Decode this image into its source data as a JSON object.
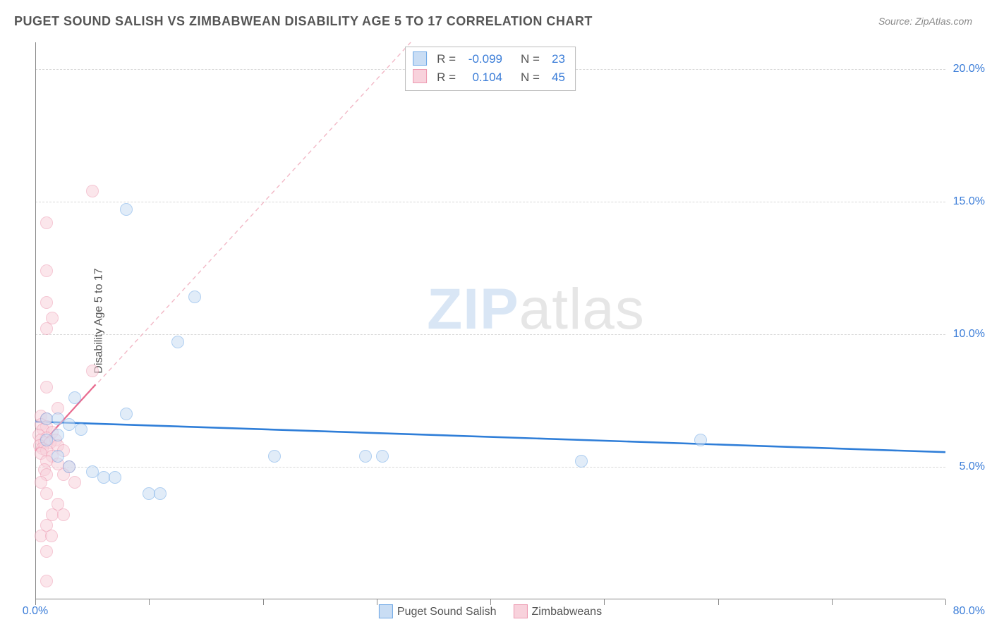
{
  "title": "PUGET SOUND SALISH VS ZIMBABWEAN DISABILITY AGE 5 TO 17 CORRELATION CHART",
  "source": "Source: ZipAtlas.com",
  "ylabel": "Disability Age 5 to 17",
  "watermark_bold": "ZIP",
  "watermark_light": "atlas",
  "chart": {
    "type": "scatter",
    "background_color": "#ffffff",
    "grid_color": "#d8d8d8",
    "axis_color": "#888888",
    "text_color": "#555555",
    "value_color": "#3b7dd8",
    "xlim": [
      0,
      80
    ],
    "ylim": [
      0,
      21
    ],
    "x_ticks": [
      0,
      10,
      20,
      30,
      40,
      50,
      60,
      70,
      80
    ],
    "x_tick_labels": {
      "0": "0.0%",
      "80": "80.0%"
    },
    "y_gridlines": [
      5,
      10,
      15,
      20
    ],
    "y_tick_labels": [
      "5.0%",
      "10.0%",
      "15.0%",
      "20.0%"
    ],
    "marker_radius": 9,
    "marker_border_width": 1.5,
    "series": [
      {
        "name": "Puget Sound Salish",
        "fill": "#c9ddf4",
        "stroke": "#6fa8e6",
        "fill_opacity": 0.55,
        "points": [
          [
            8.0,
            14.7
          ],
          [
            14.0,
            11.4
          ],
          [
            12.5,
            9.7
          ],
          [
            3.5,
            7.6
          ],
          [
            8.0,
            7.0
          ],
          [
            1.0,
            6.8
          ],
          [
            2.0,
            6.8
          ],
          [
            3.0,
            6.6
          ],
          [
            4.0,
            6.4
          ],
          [
            2.0,
            6.2
          ],
          [
            1.0,
            6.0
          ],
          [
            58.5,
            6.0
          ],
          [
            48.0,
            5.2
          ],
          [
            29.0,
            5.4
          ],
          [
            30.5,
            5.4
          ],
          [
            5.0,
            4.8
          ],
          [
            6.0,
            4.6
          ],
          [
            7.0,
            4.6
          ],
          [
            10.0,
            4.0
          ],
          [
            11.0,
            4.0
          ],
          [
            2.0,
            5.4
          ],
          [
            21.0,
            5.4
          ],
          [
            3.0,
            5.0
          ]
        ],
        "trend": {
          "y_at_x0": 6.7,
          "y_at_xmax": 5.55,
          "stroke": "#2f7ed8",
          "width": 2.6,
          "dash": "none"
        }
      },
      {
        "name": "Zimbabweans",
        "fill": "#f8d2dc",
        "stroke": "#ed9ab1",
        "fill_opacity": 0.55,
        "points": [
          [
            5.0,
            15.4
          ],
          [
            1.0,
            14.2
          ],
          [
            1.0,
            12.4
          ],
          [
            1.0,
            11.2
          ],
          [
            1.5,
            10.6
          ],
          [
            1.0,
            10.2
          ],
          [
            5.0,
            8.6
          ],
          [
            1.0,
            8.0
          ],
          [
            2.0,
            7.2
          ],
          [
            0.5,
            6.9
          ],
          [
            1.0,
            6.8
          ],
          [
            0.5,
            6.6
          ],
          [
            1.0,
            6.5
          ],
          [
            0.7,
            6.4
          ],
          [
            1.5,
            6.3
          ],
          [
            0.3,
            6.2
          ],
          [
            1.0,
            6.1
          ],
          [
            0.5,
            6.0
          ],
          [
            1.8,
            6.0
          ],
          [
            0.8,
            5.9
          ],
          [
            1.3,
            5.9
          ],
          [
            0.4,
            5.8
          ],
          [
            2.0,
            5.8
          ],
          [
            0.6,
            5.7
          ],
          [
            1.0,
            5.6
          ],
          [
            2.5,
            5.6
          ],
          [
            0.5,
            5.5
          ],
          [
            1.5,
            5.4
          ],
          [
            1.0,
            5.2
          ],
          [
            2.0,
            5.1
          ],
          [
            3.0,
            5.0
          ],
          [
            0.8,
            4.9
          ],
          [
            1.0,
            4.7
          ],
          [
            2.5,
            4.7
          ],
          [
            0.5,
            4.4
          ],
          [
            3.5,
            4.4
          ],
          [
            1.0,
            4.0
          ],
          [
            2.0,
            3.6
          ],
          [
            1.5,
            3.2
          ],
          [
            2.5,
            3.2
          ],
          [
            1.0,
            2.8
          ],
          [
            0.5,
            2.4
          ],
          [
            1.4,
            2.4
          ],
          [
            1.0,
            1.8
          ],
          [
            1.0,
            0.7
          ]
        ],
        "trend": {
          "x0": 0,
          "y0": 5.6,
          "x1": 33,
          "y1": 21,
          "stroke": "#f2b8c6",
          "width": 1.4,
          "dash": "6,5",
          "solid_segment": {
            "x0": 0,
            "y0": 5.6,
            "x1": 5.3,
            "y1": 8.1,
            "stroke": "#e86b8f",
            "width": 2.2
          }
        }
      }
    ],
    "stats": [
      {
        "swatch_fill": "#c9ddf4",
        "swatch_stroke": "#6fa8e6",
        "r_label": "R =",
        "r": "-0.099",
        "n_label": "N =",
        "n": "23"
      },
      {
        "swatch_fill": "#f8d2dc",
        "swatch_stroke": "#ed9ab1",
        "r_label": "R =",
        "r": "0.104",
        "n_label": "N =",
        "n": "45"
      }
    ],
    "legend": [
      {
        "swatch_fill": "#c9ddf4",
        "swatch_stroke": "#6fa8e6",
        "label": "Puget Sound Salish"
      },
      {
        "swatch_fill": "#f8d2dc",
        "swatch_stroke": "#ed9ab1",
        "label": "Zimbabweans"
      }
    ]
  }
}
